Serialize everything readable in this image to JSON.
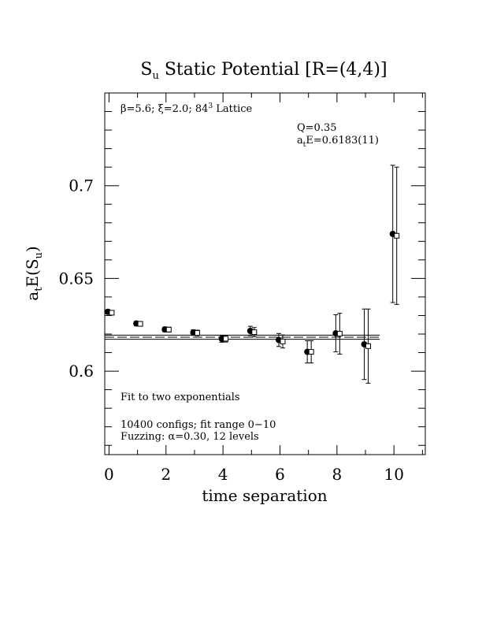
{
  "chart_data": {
    "type": "scatter",
    "title": "S",
    "title_sub": "u",
    "title_rest": " Static Potential [R=(4,4)]",
    "xlabel": "time separation",
    "ylabel_main": "a",
    "ylabel_sub1": "t",
    "ylabel_mid": "E(S",
    "ylabel_sub2": "u",
    "ylabel_end": ")",
    "xlim": [
      -0.15,
      11.1
    ],
    "ylim": [
      0.555,
      0.75
    ],
    "xticks": [
      "0",
      "2",
      "4",
      "6",
      "8",
      "10"
    ],
    "xtick_values": [
      0,
      2,
      4,
      6,
      8,
      10
    ],
    "yticks": [
      "0.6",
      "0.65",
      "0.7"
    ],
    "ytick_values": [
      0.6,
      0.65,
      0.7
    ],
    "series": [
      {
        "marker": "filled-circle",
        "points": [
          {
            "x": 0,
            "y": 0.632,
            "err": 0.0012
          },
          {
            "x": 1,
            "y": 0.6257,
            "err": 0.0012
          },
          {
            "x": 2,
            "y": 0.6225,
            "err": 0.0013
          },
          {
            "x": 3,
            "y": 0.6208,
            "err": 0.0015
          },
          {
            "x": 4,
            "y": 0.6174,
            "err": 0.0018
          },
          {
            "x": 5,
            "y": 0.6217,
            "err": 0.0025
          },
          {
            "x": 6,
            "y": 0.6168,
            "err": 0.0035
          },
          {
            "x": 7,
            "y": 0.6104,
            "err": 0.006
          },
          {
            "x": 8,
            "y": 0.6204,
            "err": 0.01
          },
          {
            "x": 9,
            "y": 0.6145,
            "err": 0.019
          },
          {
            "x": 10,
            "y": 0.674,
            "err": 0.037
          }
        ]
      },
      {
        "marker": "open-square",
        "points": [
          {
            "x": 0,
            "y": 0.6315,
            "err": 0.0012
          },
          {
            "x": 1,
            "y": 0.6255,
            "err": 0.0012
          },
          {
            "x": 2,
            "y": 0.6224,
            "err": 0.0013
          },
          {
            "x": 3,
            "y": 0.6206,
            "err": 0.0015
          },
          {
            "x": 4,
            "y": 0.6175,
            "err": 0.0018
          },
          {
            "x": 5,
            "y": 0.621,
            "err": 0.0025
          },
          {
            "x": 6,
            "y": 0.616,
            "err": 0.0035
          },
          {
            "x": 7,
            "y": 0.6104,
            "err": 0.006
          },
          {
            "x": 8,
            "y": 0.6202,
            "err": 0.011
          },
          {
            "x": 9,
            "y": 0.6135,
            "err": 0.02
          },
          {
            "x": 10,
            "y": 0.673,
            "err": 0.037
          }
        ]
      }
    ],
    "fit": {
      "x_range": [
        -0.15,
        9.5
      ],
      "center": 0.6183,
      "band_upper": 0.6194,
      "band_lower": 0.6172
    },
    "annotations": {
      "lattice": "β=5.6; ξ=2.0; 8",
      "lattice_sup1": "4",
      "lattice_mid": "3",
      "lattice_end": " Lattice",
      "q": "Q=0.35",
      "energy_main": "a",
      "energy_sub": "t",
      "energy_rest": "E=0.6183(11)",
      "fit_desc": "Fit to two exponentials",
      "configs": "10400 configs; fit range 0−10",
      "fuzzing": "Fuzzing: α=0.30, 12 levels"
    }
  }
}
